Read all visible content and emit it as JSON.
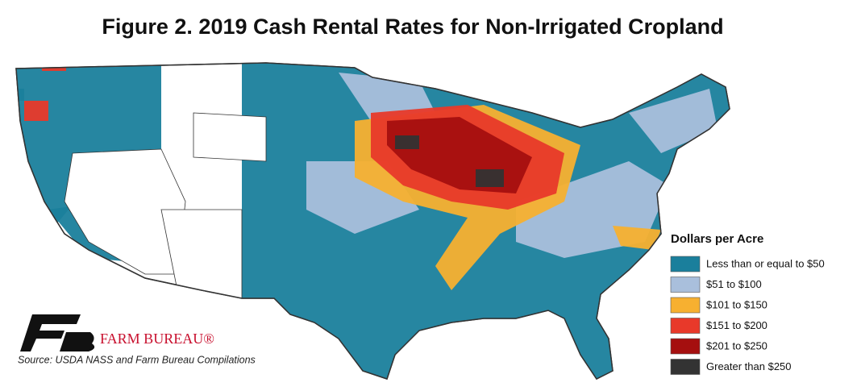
{
  "title": "Figure 2. 2019 Cash Rental Rates for Non-Irrigated Cropland",
  "legend": {
    "title": "Dollars per Acre",
    "items": [
      {
        "label": "Less than or equal to $50",
        "color": "#1a7f9c"
      },
      {
        "label": "$51 to $100",
        "color": "#a9bfdc"
      },
      {
        "label": "$101 to $150",
        "color": "#f7b030"
      },
      {
        "label": "$151 to $200",
        "color": "#e8392a"
      },
      {
        "label": "$201 to $250",
        "color": "#a50f0f"
      },
      {
        "label": "Greater than $250",
        "color": "#333333"
      }
    ]
  },
  "logo": {
    "text": "FARM BUREAU®"
  },
  "source": "Source: USDA NASS and Farm Bureau Compilations"
}
